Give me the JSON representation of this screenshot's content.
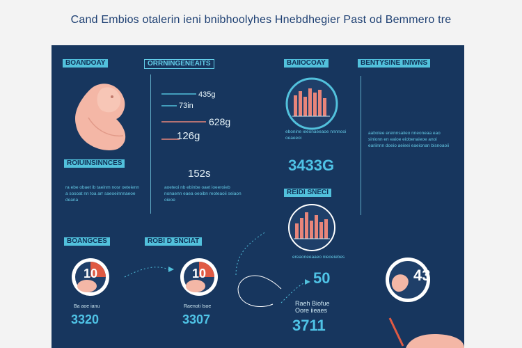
{
  "title": "Cand Embios otalerin ieni bnibhoolyhes Hnebdhegier Past od Bemmero tre",
  "panel": {
    "tags": {
      "t1": "BOANDOAY",
      "t2": "ORRNINGENEAITS",
      "t3": "BAIIOCOAY",
      "t4": "BENTYSINE INIWNS",
      "t5": "ROIUINSINNCES",
      "t6": "REIDI SNECI",
      "t7": "BOANGCES",
      "t8": "ROBI D SNCIAT"
    },
    "values": {
      "v1": "435g",
      "v2": "73in",
      "v3": "628g",
      "v4": "126g",
      "v5": "152s",
      "big1": "3433G",
      "big2": "50",
      "ring1": "10",
      "ring2": "10",
      "ring3": "43",
      "b1": "3320",
      "b2": "3307",
      "b3": "3711"
    },
    "captions": {
      "c1": "Ba aoe ianu",
      "c2": "Raenoti Isoe",
      "c3": "Raeh Biofue",
      "c3b": "Oore iieaes"
    },
    "paragraphs": {
      "p1": "ra ebe obaet ib taeinm nosr oeteienn a sosoat nn toa arr saeoeinnnaeoe deana",
      "p2": "aoeteoi nb ebinbe oaet ioeeroieb nonaenn eaea oeoibn reoteaoii seiaon oieoe",
      "p3": "aabotee ereinnsaiieo nneoneaa eao sinionn en eaioe eiobenaieoe anoi eariinnn doeio aeieei eaeionan bisnoaoii",
      "p4": "ebonine ieeonaeeaoe nnnnooi oeaeeoi",
      "p5": "ereaoneeaaeo nieoeiebes"
    },
    "colors": {
      "panel": "#17365e",
      "accent": "#52c1dc",
      "salmon": "#e8857a",
      "skin": "#f4b7a6"
    }
  }
}
